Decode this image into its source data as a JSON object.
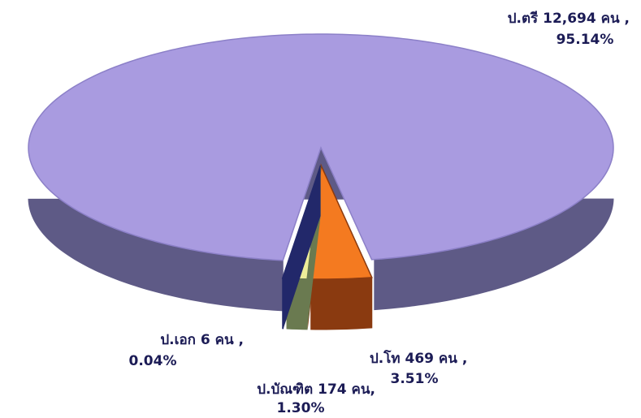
{
  "chart_data": {
    "type": "pie",
    "categories": [
      "ป.ตรี",
      "ป.โท",
      "ป.บัณฑิต",
      "ป.เอก"
    ],
    "counts": [
      12694,
      469,
      174,
      6
    ],
    "count_labels": [
      "12,694 คน ,",
      "469 คน ,",
      "174 คน,",
      "6 คน ,"
    ],
    "values": [
      95.14,
      3.51,
      1.3,
      0.04
    ],
    "value_labels": [
      "95.14%",
      "3.51%",
      "1.30%",
      "0.04%"
    ],
    "colors": [
      "#a99be0",
      "#f47a20",
      "#eeee99",
      "#3344aa"
    ],
    "side_colors": [
      "#5e5a86",
      "#8a3a10",
      "#6a7a50",
      "#22286a"
    ]
  }
}
